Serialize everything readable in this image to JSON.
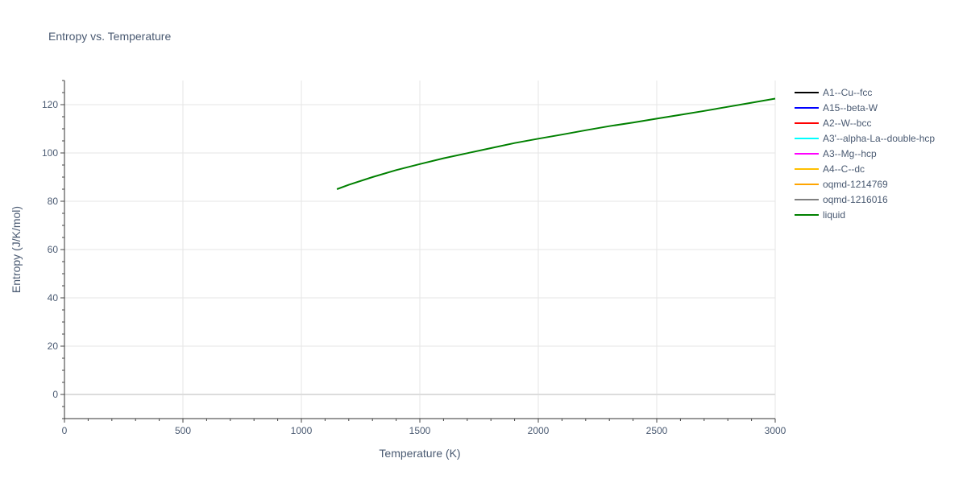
{
  "chart_data": {
    "type": "line",
    "title": "Entropy vs. Temperature",
    "xlabel": "Temperature (K)",
    "ylabel": "Entropy (J/K/mol)",
    "xlim": [
      0,
      3000
    ],
    "ylim": [
      -10,
      130
    ],
    "xticks": [
      0,
      500,
      1000,
      1500,
      2000,
      2500,
      3000
    ],
    "yticks": [
      0,
      20,
      40,
      60,
      80,
      100,
      120
    ],
    "grid": true,
    "legend_position": "right",
    "legend": [
      {
        "name": "A1--Cu--fcc",
        "color": "#000000"
      },
      {
        "name": "A15--beta-W",
        "color": "#0000ff"
      },
      {
        "name": "A2--W--bcc",
        "color": "#ff0000"
      },
      {
        "name": "A3'--alpha-La--double-hcp",
        "color": "#00ffff"
      },
      {
        "name": "A3--Mg--hcp",
        "color": "#ff00ff"
      },
      {
        "name": "A4--C--dc",
        "color": "#ffbf00"
      },
      {
        "name": "oqmd-1214769",
        "color": "#ffa500"
      },
      {
        "name": "oqmd-1216016",
        "color": "#808080"
      },
      {
        "name": "liquid",
        "color": "#008000"
      }
    ],
    "series": [
      {
        "name": "liquid",
        "color": "#008000",
        "x": [
          1150,
          1200,
          1300,
          1400,
          1500,
          1600,
          1700,
          1800,
          1900,
          2000,
          2100,
          2200,
          2300,
          2400,
          2500,
          2600,
          2700,
          2800,
          2900,
          3000
        ],
        "y": [
          85.0,
          86.8,
          90.0,
          92.9,
          95.4,
          97.8,
          99.9,
          102.0,
          104.1,
          105.9,
          107.6,
          109.4,
          111.1,
          112.6,
          114.2,
          115.8,
          117.4,
          119.1,
          120.8,
          122.5
        ]
      }
    ]
  }
}
